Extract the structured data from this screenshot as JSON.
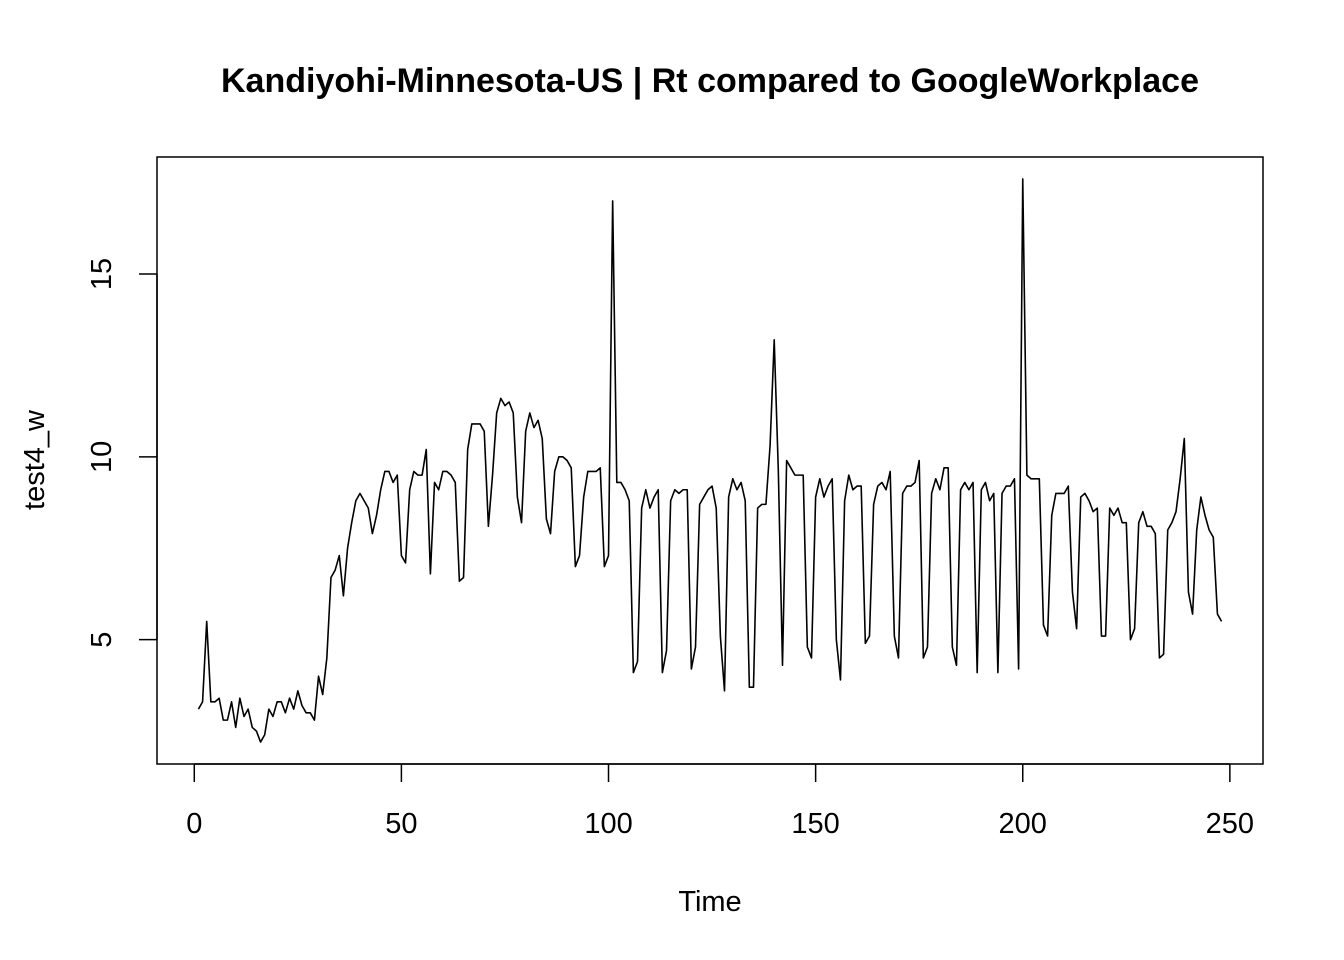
{
  "chart_data": {
    "type": "line",
    "title": "Kandiyohi-Minnesota-US | Rt compared to GoogleWorkplace",
    "xlabel": "Time",
    "ylabel": "test4_w",
    "xlim": [
      -9,
      258
    ],
    "ylim": [
      1.6,
      18.2
    ],
    "x_ticks": [
      0,
      50,
      100,
      150,
      200,
      250
    ],
    "y_ticks": [
      5,
      10,
      15
    ],
    "grid": false,
    "legend": "none",
    "line_color": "#000000",
    "series": [
      {
        "x": [
          1,
          2,
          3,
          4,
          5,
          6,
          7,
          8,
          9,
          10,
          11,
          12,
          13,
          14,
          15,
          16,
          17,
          18,
          19,
          20,
          21,
          22,
          23,
          24,
          25,
          26,
          27,
          28,
          29,
          30,
          31,
          32,
          33,
          34,
          35,
          36,
          37,
          38,
          39,
          40,
          41,
          42,
          43,
          44,
          45,
          46,
          47,
          48,
          49,
          50,
          51,
          52,
          53,
          54,
          55,
          56,
          57,
          58,
          59,
          60,
          61,
          62,
          63,
          64,
          65,
          66,
          67,
          68,
          69,
          70,
          71,
          72,
          73,
          74,
          75,
          76,
          77,
          78,
          79,
          80,
          81,
          82,
          83,
          84,
          85,
          86,
          87,
          88,
          89,
          90,
          91,
          92,
          93,
          94,
          95,
          96,
          97,
          98,
          99,
          100,
          101,
          102,
          103,
          104,
          105,
          106,
          107,
          108,
          109,
          110,
          111,
          112,
          113,
          114,
          115,
          116,
          117,
          118,
          119,
          120,
          121,
          122,
          123,
          124,
          125,
          126,
          127,
          128,
          129,
          130,
          131,
          132,
          133,
          134,
          135,
          136,
          137,
          138,
          139,
          140,
          141,
          142,
          143,
          144,
          145,
          146,
          147,
          148,
          149,
          150,
          151,
          152,
          153,
          154,
          155,
          156,
          157,
          158,
          159,
          160,
          161,
          162,
          163,
          164,
          165,
          166,
          167,
          168,
          169,
          170,
          171,
          172,
          173,
          174,
          175,
          176,
          177,
          178,
          179,
          180,
          181,
          182,
          183,
          184,
          185,
          186,
          187,
          188,
          189,
          190,
          191,
          192,
          193,
          194,
          195,
          196,
          197,
          198,
          199,
          200,
          201,
          202,
          203,
          204,
          205,
          206,
          207,
          208,
          209,
          210,
          211,
          212,
          213,
          214,
          215,
          216,
          217,
          218,
          219,
          220,
          221,
          222,
          223,
          224,
          225,
          226,
          227,
          228,
          229,
          230,
          231,
          232,
          233,
          234,
          235,
          236,
          237,
          238,
          239,
          240,
          241,
          242,
          243,
          244,
          245,
          246,
          247,
          248
        ],
        "values": [
          3.1,
          3.3,
          5.5,
          3.3,
          3.3,
          3.4,
          2.8,
          2.8,
          3.3,
          2.6,
          3.4,
          2.9,
          3.1,
          2.6,
          2.5,
          2.2,
          2.4,
          3.1,
          2.9,
          3.3,
          3.3,
          3.0,
          3.4,
          3.1,
          3.6,
          3.2,
          3.0,
          3.0,
          2.8,
          4.0,
          3.5,
          4.5,
          6.7,
          6.9,
          7.3,
          6.2,
          7.5,
          8.2,
          8.8,
          9.0,
          8.8,
          8.6,
          7.9,
          8.4,
          9.1,
          9.6,
          9.6,
          9.3,
          9.5,
          7.3,
          7.1,
          9.1,
          9.6,
          9.5,
          9.5,
          10.2,
          6.8,
          9.3,
          9.1,
          9.6,
          9.6,
          9.5,
          9.3,
          6.6,
          6.7,
          10.2,
          10.9,
          10.9,
          10.9,
          10.7,
          8.1,
          9.5,
          11.2,
          11.6,
          11.4,
          11.5,
          11.2,
          8.9,
          8.2,
          10.7,
          11.2,
          10.8,
          11.0,
          10.5,
          8.3,
          7.9,
          9.6,
          10.0,
          10.0,
          9.9,
          9.7,
          7.0,
          7.3,
          8.9,
          9.6,
          9.6,
          9.6,
          9.7,
          7.0,
          7.3,
          17.0,
          9.3,
          9.3,
          9.1,
          8.8,
          4.1,
          4.4,
          8.6,
          9.1,
          8.6,
          8.9,
          9.1,
          4.1,
          4.7,
          8.8,
          9.1,
          9.0,
          9.1,
          9.1,
          4.2,
          4.8,
          8.7,
          8.9,
          9.1,
          9.2,
          8.6,
          5.1,
          3.6,
          8.9,
          9.4,
          9.1,
          9.3,
          8.8,
          3.7,
          3.7,
          8.6,
          8.7,
          8.7,
          10.3,
          13.2,
          9.6,
          4.3,
          9.9,
          9.7,
          9.5,
          9.5,
          9.5,
          4.8,
          4.5,
          8.9,
          9.4,
          8.9,
          9.2,
          9.4,
          5.0,
          3.9,
          8.8,
          9.5,
          9.1,
          9.2,
          9.2,
          4.9,
          5.1,
          8.7,
          9.2,
          9.3,
          9.1,
          9.6,
          5.1,
          4.5,
          9.0,
          9.2,
          9.2,
          9.3,
          9.9,
          4.5,
          4.8,
          9.0,
          9.4,
          9.1,
          9.7,
          9.7,
          4.8,
          4.3,
          9.1,
          9.3,
          9.1,
          9.3,
          4.1,
          9.1,
          9.3,
          8.8,
          9.0,
          4.1,
          9.0,
          9.2,
          9.2,
          9.4,
          4.2,
          17.6,
          9.5,
          9.4,
          9.4,
          9.4,
          5.4,
          5.1,
          8.4,
          9.0,
          9.0,
          9.0,
          9.2,
          6.3,
          5.3,
          8.9,
          9.0,
          8.8,
          8.5,
          8.6,
          5.1,
          5.1,
          8.6,
          8.4,
          8.6,
          8.2,
          8.2,
          5.0,
          5.3,
          8.2,
          8.5,
          8.1,
          8.1,
          7.9,
          4.5,
          4.6,
          8.0,
          8.2,
          8.5,
          9.4,
          10.5,
          6.3,
          5.7,
          8.0,
          8.9,
          8.4,
          8.0,
          7.8,
          5.7,
          5.5
        ]
      }
    ]
  }
}
